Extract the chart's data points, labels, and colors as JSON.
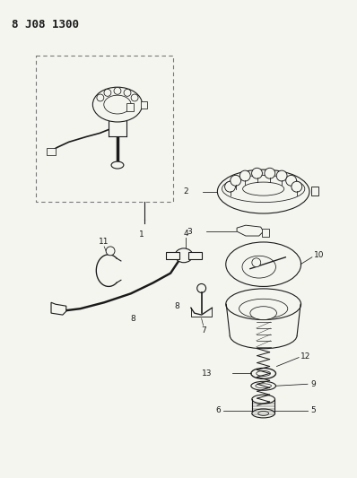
{
  "title": "8 J08 1300",
  "background_color": "#f5f5f0",
  "fig_width": 3.98,
  "fig_height": 5.33,
  "dpi": 100,
  "line_color": "#1a1a1a",
  "label_fontsize": 6.5,
  "title_fontsize": 9
}
